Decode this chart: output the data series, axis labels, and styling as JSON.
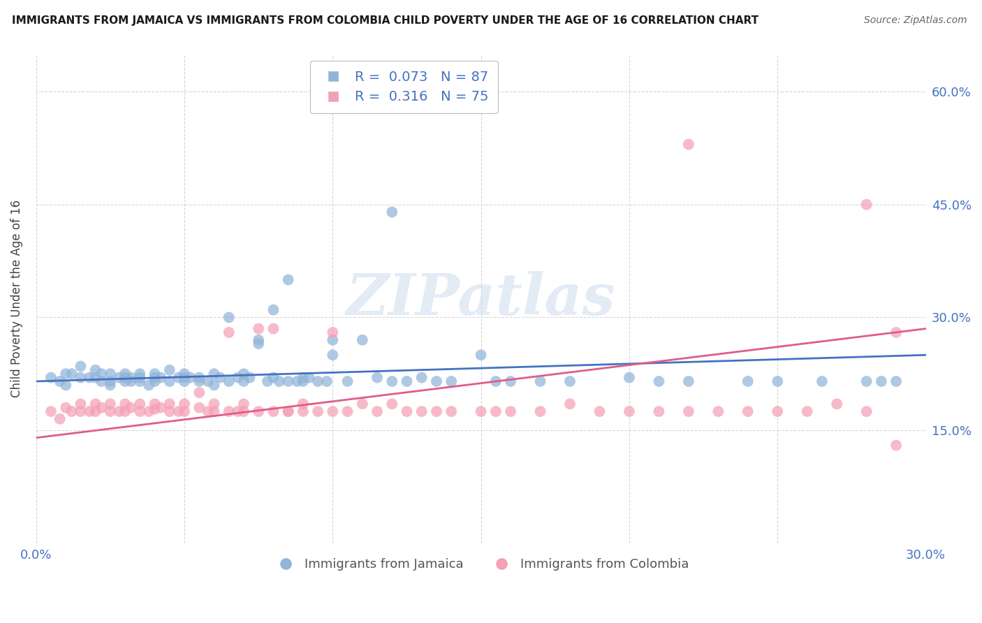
{
  "title": "IMMIGRANTS FROM JAMAICA VS IMMIGRANTS FROM COLOMBIA CHILD POVERTY UNDER THE AGE OF 16 CORRELATION CHART",
  "source": "Source: ZipAtlas.com",
  "ylabel": "Child Poverty Under the Age of 16",
  "xlim": [
    0.0,
    0.3
  ],
  "ylim": [
    0.0,
    0.65
  ],
  "jamaica_color": "#91b4d9",
  "colombia_color": "#f4a0b5",
  "jamaica_R": 0.073,
  "jamaica_N": 87,
  "colombia_R": 0.316,
  "colombia_N": 75,
  "trend_jamaica_color": "#4472c4",
  "trend_colombia_color": "#e05c8a",
  "legend_label_jamaica": "Immigrants from Jamaica",
  "legend_label_colombia": "Immigrants from Colombia",
  "watermark": "ZIPatlas",
  "grid_color": "#cccccc",
  "background_color": "#ffffff",
  "jamaica_x": [
    0.005,
    0.008,
    0.01,
    0.01,
    0.012,
    0.015,
    0.015,
    0.018,
    0.02,
    0.02,
    0.022,
    0.022,
    0.025,
    0.025,
    0.025,
    0.028,
    0.03,
    0.03,
    0.03,
    0.032,
    0.032,
    0.035,
    0.035,
    0.035,
    0.038,
    0.04,
    0.04,
    0.04,
    0.042,
    0.045,
    0.045,
    0.048,
    0.05,
    0.05,
    0.05,
    0.052,
    0.055,
    0.055,
    0.058,
    0.06,
    0.06,
    0.062,
    0.065,
    0.065,
    0.068,
    0.07,
    0.07,
    0.072,
    0.075,
    0.075,
    0.078,
    0.08,
    0.08,
    0.082,
    0.085,
    0.085,
    0.088,
    0.09,
    0.09,
    0.092,
    0.095,
    0.098,
    0.1,
    0.1,
    0.105,
    0.11,
    0.115,
    0.12,
    0.125,
    0.13,
    0.135,
    0.14,
    0.15,
    0.155,
    0.16,
    0.17,
    0.18,
    0.2,
    0.21,
    0.22,
    0.24,
    0.25,
    0.265,
    0.28,
    0.285,
    0.12,
    0.29
  ],
  "jamaica_y": [
    0.22,
    0.215,
    0.225,
    0.21,
    0.225,
    0.235,
    0.22,
    0.22,
    0.22,
    0.23,
    0.225,
    0.215,
    0.21,
    0.225,
    0.215,
    0.22,
    0.225,
    0.215,
    0.22,
    0.22,
    0.215,
    0.225,
    0.215,
    0.22,
    0.21,
    0.22,
    0.225,
    0.215,
    0.22,
    0.23,
    0.215,
    0.22,
    0.22,
    0.215,
    0.225,
    0.22,
    0.215,
    0.22,
    0.215,
    0.225,
    0.21,
    0.22,
    0.3,
    0.215,
    0.22,
    0.225,
    0.215,
    0.22,
    0.265,
    0.27,
    0.215,
    0.22,
    0.31,
    0.215,
    0.215,
    0.35,
    0.215,
    0.215,
    0.22,
    0.22,
    0.215,
    0.215,
    0.25,
    0.27,
    0.215,
    0.27,
    0.22,
    0.215,
    0.215,
    0.22,
    0.215,
    0.215,
    0.25,
    0.215,
    0.215,
    0.215,
    0.215,
    0.22,
    0.215,
    0.215,
    0.215,
    0.215,
    0.215,
    0.215,
    0.215,
    0.44,
    0.215
  ],
  "colombia_x": [
    0.005,
    0.008,
    0.01,
    0.012,
    0.015,
    0.015,
    0.018,
    0.02,
    0.02,
    0.022,
    0.025,
    0.025,
    0.028,
    0.03,
    0.03,
    0.032,
    0.035,
    0.035,
    0.038,
    0.04,
    0.04,
    0.042,
    0.045,
    0.045,
    0.048,
    0.05,
    0.05,
    0.055,
    0.055,
    0.058,
    0.06,
    0.06,
    0.065,
    0.065,
    0.068,
    0.07,
    0.07,
    0.075,
    0.075,
    0.08,
    0.08,
    0.085,
    0.085,
    0.09,
    0.09,
    0.095,
    0.1,
    0.1,
    0.105,
    0.11,
    0.115,
    0.12,
    0.125,
    0.13,
    0.135,
    0.14,
    0.15,
    0.155,
    0.16,
    0.17,
    0.18,
    0.19,
    0.2,
    0.21,
    0.22,
    0.23,
    0.24,
    0.25,
    0.26,
    0.27,
    0.28,
    0.29,
    0.22,
    0.28,
    0.29
  ],
  "colombia_y": [
    0.175,
    0.165,
    0.18,
    0.175,
    0.185,
    0.175,
    0.175,
    0.185,
    0.175,
    0.18,
    0.185,
    0.175,
    0.175,
    0.185,
    0.175,
    0.18,
    0.185,
    0.175,
    0.175,
    0.185,
    0.178,
    0.18,
    0.185,
    0.175,
    0.175,
    0.175,
    0.185,
    0.18,
    0.2,
    0.175,
    0.185,
    0.175,
    0.28,
    0.175,
    0.175,
    0.185,
    0.175,
    0.175,
    0.285,
    0.175,
    0.285,
    0.175,
    0.175,
    0.175,
    0.185,
    0.175,
    0.175,
    0.28,
    0.175,
    0.185,
    0.175,
    0.185,
    0.175,
    0.175,
    0.175,
    0.175,
    0.175,
    0.175,
    0.175,
    0.175,
    0.185,
    0.175,
    0.175,
    0.175,
    0.175,
    0.175,
    0.175,
    0.175,
    0.175,
    0.185,
    0.175,
    0.28,
    0.53,
    0.45,
    0.13
  ]
}
